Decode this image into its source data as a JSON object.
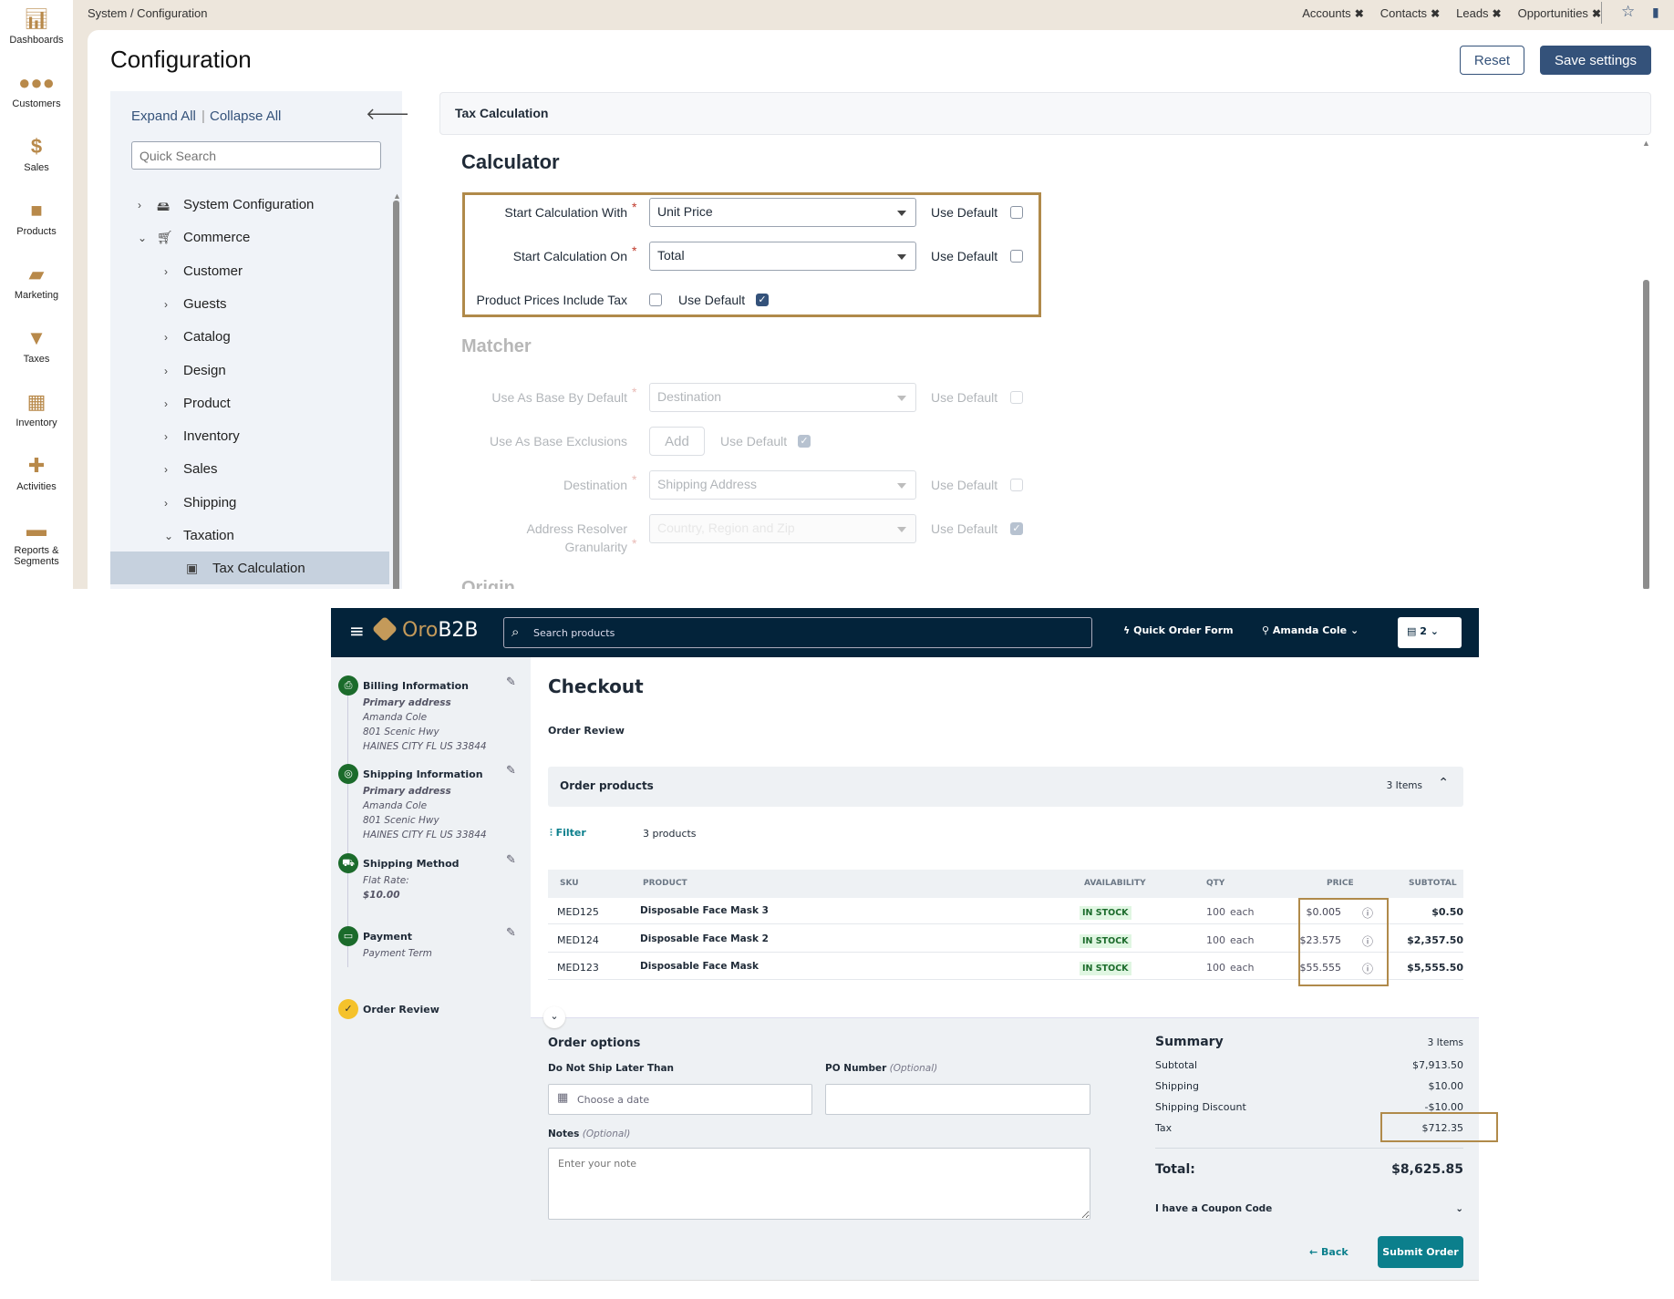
{
  "admin": {
    "nav": [
      {
        "label": "Dashboards",
        "icon": "bar-chart-icon"
      },
      {
        "label": "Customers",
        "icon": "users-icon"
      },
      {
        "label": "Sales",
        "icon": "dollar-icon"
      },
      {
        "label": "Products",
        "icon": "briefcase-icon"
      },
      {
        "label": "Marketing",
        "icon": "book-icon"
      },
      {
        "label": "Taxes",
        "icon": "filter-icon"
      },
      {
        "label": "Inventory",
        "icon": "building-icon"
      },
      {
        "label": "Activities",
        "icon": "puzzle-icon"
      },
      {
        "label": "Reports & Segments",
        "icon": "folder-icon"
      }
    ],
    "breadcrumb": "System / Configuration",
    "pinned_tabs": [
      "Accounts",
      "Contacts",
      "Leads",
      "Opportunities"
    ],
    "title": "Configuration",
    "reset_label": "Reset",
    "save_label": "Save settings",
    "expand_all": "Expand All",
    "collapse_all": "Collapse All",
    "quick_search_placeholder": "Quick Search",
    "tree": [
      {
        "label": "System Configuration",
        "level": 1,
        "expanded": false
      },
      {
        "label": "Commerce",
        "level": 1,
        "expanded": true
      },
      {
        "label": "Customer",
        "level": 2
      },
      {
        "label": "Guests",
        "level": 2
      },
      {
        "label": "Catalog",
        "level": 2
      },
      {
        "label": "Design",
        "level": 2
      },
      {
        "label": "Product",
        "level": 2
      },
      {
        "label": "Inventory",
        "level": 2
      },
      {
        "label": "Sales",
        "level": 2
      },
      {
        "label": "Shipping",
        "level": 2
      },
      {
        "label": "Taxation",
        "level": 2,
        "expanded": true
      },
      {
        "label": "Tax Calculation",
        "level": 3,
        "selected": true
      }
    ],
    "section_title": "Tax Calculation",
    "calculator": {
      "heading": "Calculator",
      "start_with": {
        "label": "Start Calculation With",
        "value": "Unit Price",
        "use_default": false
      },
      "start_on": {
        "label": "Start Calculation On",
        "value": "Total",
        "use_default": false
      },
      "prices_include_tax": {
        "label": "Product Prices Include Tax",
        "checked": false,
        "use_default": true
      }
    },
    "matcher": {
      "heading": "Matcher",
      "base_default": {
        "label": "Use As Base By Default",
        "value": "Destination",
        "use_default": false
      },
      "base_exclusions": {
        "label": "Use As Base Exclusions",
        "button": "Add",
        "use_default": true
      },
      "destination": {
        "label": "Destination",
        "value": "Shipping Address",
        "use_default": false
      },
      "granularity": {
        "label_1": "Address Resolver",
        "label_2": "Granularity",
        "value": "Country, Region and Zip",
        "use_default": true
      }
    },
    "use_default_label": "Use Default",
    "next_heading": "Origin",
    "highlight_color": "#b08a4a"
  },
  "store": {
    "logo": "OroB2B",
    "search_placeholder": "Search products",
    "quick_order": "Quick Order Form",
    "user": "Amanda Cole",
    "cart_count": "2",
    "steps": [
      {
        "title": "Billing Information",
        "lines": [
          "Primary address",
          "Amanda Cole",
          "801 Scenic Hwy",
          "HAINES CITY FL US 33844"
        ]
      },
      {
        "title": "Shipping Information",
        "lines": [
          "Primary address",
          "Amanda Cole",
          "801 Scenic Hwy",
          "HAINES CITY FL US 33844"
        ]
      },
      {
        "title": "Shipping Method",
        "lines": [
          "Flat Rate:",
          "$10.00"
        ]
      },
      {
        "title": "Payment",
        "lines": [
          "Payment Term"
        ]
      },
      {
        "title": "Order Review",
        "lines": []
      }
    ],
    "page_title": "Checkout",
    "subtitle": "Order Review",
    "products_title": "Order products",
    "items_count": "3 Items",
    "filter": "Filter",
    "products_count": "3 products",
    "columns": [
      "SKU",
      "PRODUCT",
      "AVAILABILITY",
      "QTY",
      "PRICE",
      "SUBTOTAL"
    ],
    "rows": [
      {
        "sku": "MED125",
        "product": "Disposable Face Mask 3",
        "availability": "IN STOCK",
        "qty": "100",
        "unit": "each",
        "price": "$0.005",
        "subtotal": "$0.50"
      },
      {
        "sku": "MED124",
        "product": "Disposable Face Mask 2",
        "availability": "IN STOCK",
        "qty": "100",
        "unit": "each",
        "price": "$23.575",
        "subtotal": "$2,357.50"
      },
      {
        "sku": "MED123",
        "product": "Disposable Face Mask",
        "availability": "IN STOCK",
        "qty": "100",
        "unit": "each",
        "price": "$55.555",
        "subtotal": "$5,555.50"
      }
    ],
    "order_options": "Order options",
    "ship_label": "Do Not Ship Later Than",
    "date_placeholder": "Choose a date",
    "po_label": "PO Number",
    "optional": "(Optional)",
    "notes_label": "Notes",
    "notes_placeholder": "Enter your note",
    "summary": {
      "title": "Summary",
      "items": "3 Items",
      "rows": [
        [
          "Subtotal",
          "$7,913.50"
        ],
        [
          "Shipping",
          "$10.00"
        ],
        [
          "Shipping Discount",
          "-$10.00"
        ],
        [
          "Tax",
          "$712.35"
        ]
      ],
      "total_label": "Total:",
      "total": "$8,625.85",
      "coupon": "I have a Coupon Code"
    },
    "back": "Back",
    "submit": "Submit Order",
    "accent": "#0b7f8c",
    "header_bg": "#03233a"
  }
}
